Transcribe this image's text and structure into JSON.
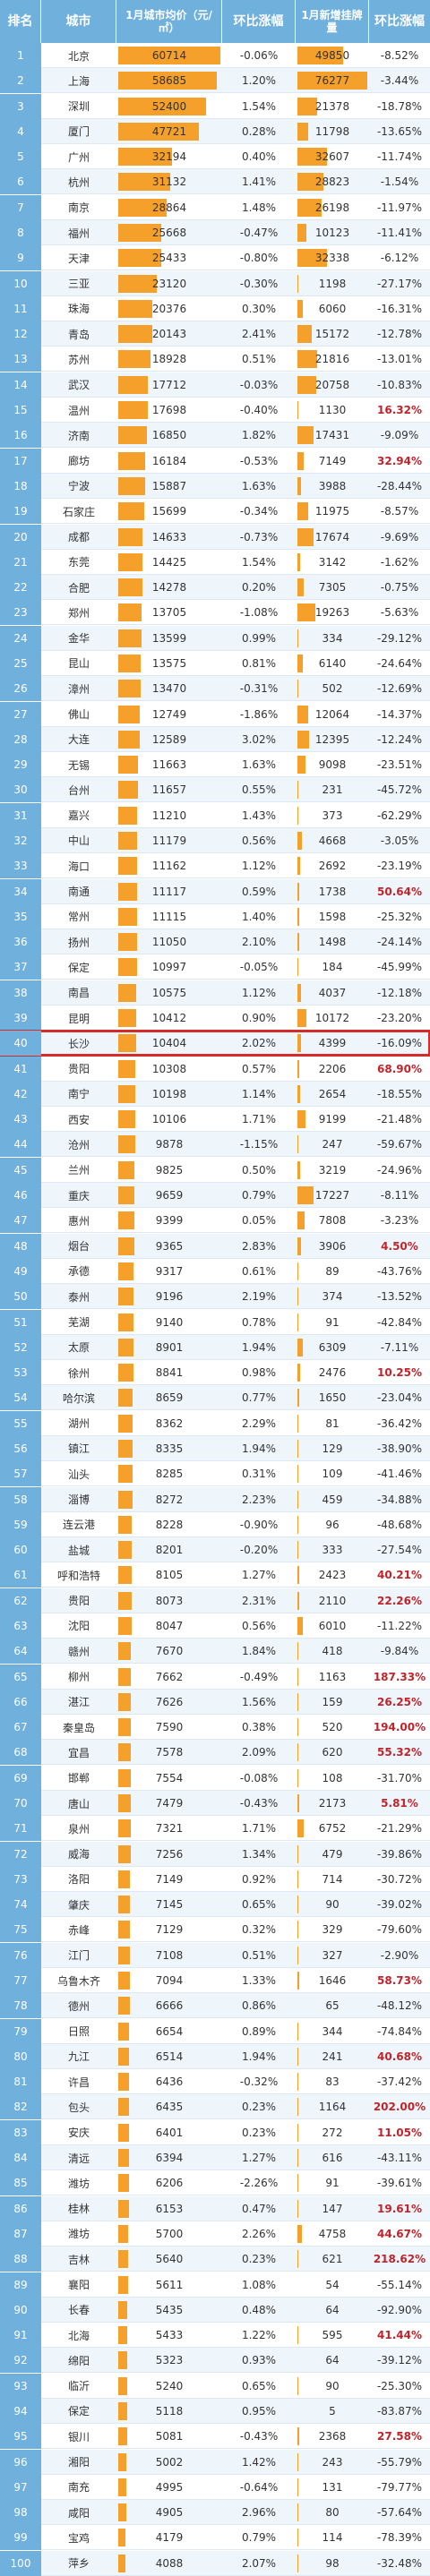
{
  "colors": {
    "header_bg": "#6fb0dd",
    "bar": "#f5a02a",
    "highlight_border": "#d62b2b",
    "positive_text": "#c0242b"
  },
  "header": {
    "rank": "排名",
    "city": "城市",
    "price": "1月城市均价（元/㎡）",
    "price_change": "环比涨幅",
    "listings": "1月新增挂牌量",
    "listing_change": "环比涨幅"
  },
  "highlight_rank": 40,
  "chart_data": {
    "type": "table",
    "columns": [
      "排名",
      "城市",
      "1月城市均价（元/㎡）",
      "环比涨幅",
      "1月新增挂牌量",
      "环比涨幅"
    ],
    "rows": [
      {
        "rank": "1",
        "city": "北京",
        "price": 60714,
        "price_change": "-0.06%",
        "listings": 49850,
        "listing_change": "-8.52%"
      },
      {
        "rank": "2",
        "city": "上海",
        "price": 58685,
        "price_change": "1.20%",
        "listings": 76277,
        "listing_change": "-3.44%"
      },
      {
        "rank": "3",
        "city": "深圳",
        "price": 52400,
        "price_change": "1.54%",
        "listings": 21378,
        "listing_change": "-18.78%"
      },
      {
        "rank": "4",
        "city": "厦门",
        "price": 47721,
        "price_change": "0.28%",
        "listings": 11798,
        "listing_change": "-13.65%"
      },
      {
        "rank": "5",
        "city": "广州",
        "price": 32194,
        "price_change": "0.40%",
        "listings": 32607,
        "listing_change": "-11.74%"
      },
      {
        "rank": "6",
        "city": "杭州",
        "price": 31132,
        "price_change": "1.41%",
        "listings": 28823,
        "listing_change": "-1.54%"
      },
      {
        "rank": "7",
        "city": "南京",
        "price": 28864,
        "price_change": "1.48%",
        "listings": 26198,
        "listing_change": "-11.97%"
      },
      {
        "rank": "8",
        "city": "福州",
        "price": 25668,
        "price_change": "-0.47%",
        "listings": 10123,
        "listing_change": "-11.41%"
      },
      {
        "rank": "9",
        "city": "天津",
        "price": 25433,
        "price_change": "-0.80%",
        "listings": 32338,
        "listing_change": "-6.12%"
      },
      {
        "rank": "10",
        "city": "三亚",
        "price": 23120,
        "price_change": "-0.30%",
        "listings": 1198,
        "listing_change": "-27.17%"
      },
      {
        "rank": "11",
        "city": "珠海",
        "price": 20376,
        "price_change": "0.30%",
        "listings": 6060,
        "listing_change": "-16.31%"
      },
      {
        "rank": "12",
        "city": "青岛",
        "price": 20143,
        "price_change": "2.41%",
        "listings": 15172,
        "listing_change": "-12.78%"
      },
      {
        "rank": "13",
        "city": "苏州",
        "price": 18928,
        "price_change": "0.51%",
        "listings": 21816,
        "listing_change": "-13.01%"
      },
      {
        "rank": "14",
        "city": "武汉",
        "price": 17712,
        "price_change": "-0.03%",
        "listings": 20758,
        "listing_change": "-10.83%"
      },
      {
        "rank": "15",
        "city": "温州",
        "price": 17698,
        "price_change": "-0.40%",
        "listings": 1130,
        "listing_change": "16.32%"
      },
      {
        "rank": "16",
        "city": "济南",
        "price": 16850,
        "price_change": "1.82%",
        "listings": 17431,
        "listing_change": "-9.09%"
      },
      {
        "rank": "17",
        "city": "廊坊",
        "price": 16184,
        "price_change": "-0.53%",
        "listings": 7149,
        "listing_change": "32.94%"
      },
      {
        "rank": "18",
        "city": "宁波",
        "price": 15887,
        "price_change": "1.63%",
        "listings": 3988,
        "listing_change": "-28.44%"
      },
      {
        "rank": "19",
        "city": "石家庄",
        "price": 15699,
        "price_change": "-0.34%",
        "listings": 11975,
        "listing_change": "-8.57%"
      },
      {
        "rank": "20",
        "city": "成都",
        "price": 14633,
        "price_change": "-0.73%",
        "listings": 17674,
        "listing_change": "-9.69%"
      },
      {
        "rank": "21",
        "city": "东莞",
        "price": 14425,
        "price_change": "1.54%",
        "listings": 3142,
        "listing_change": "-1.62%"
      },
      {
        "rank": "22",
        "city": "合肥",
        "price": 14278,
        "price_change": "0.20%",
        "listings": 7305,
        "listing_change": "-0.75%"
      },
      {
        "rank": "23",
        "city": "郑州",
        "price": 13705,
        "price_change": "-1.08%",
        "listings": 19263,
        "listing_change": "-5.63%"
      },
      {
        "rank": "24",
        "city": "金华",
        "price": 13599,
        "price_change": "0.99%",
        "listings": 334,
        "listing_change": "-29.12%"
      },
      {
        "rank": "25",
        "city": "昆山",
        "price": 13575,
        "price_change": "0.81%",
        "listings": 6140,
        "listing_change": "-24.64%"
      },
      {
        "rank": "26",
        "city": "漳州",
        "price": 13470,
        "price_change": "-0.31%",
        "listings": 502,
        "listing_change": "-12.69%"
      },
      {
        "rank": "27",
        "city": "佛山",
        "price": 12749,
        "price_change": "-1.86%",
        "listings": 12064,
        "listing_change": "-14.37%"
      },
      {
        "rank": "28",
        "city": "大连",
        "price": 12589,
        "price_change": "3.02%",
        "listings": 12395,
        "listing_change": "-12.24%"
      },
      {
        "rank": "29",
        "city": "无锡",
        "price": 11663,
        "price_change": "1.63%",
        "listings": 9098,
        "listing_change": "-23.51%"
      },
      {
        "rank": "30",
        "city": "台州",
        "price": 11657,
        "price_change": "0.55%",
        "listings": 231,
        "listing_change": "-45.72%"
      },
      {
        "rank": "31",
        "city": "嘉兴",
        "price": 11210,
        "price_change": "1.43%",
        "listings": 373,
        "listing_change": "-62.29%"
      },
      {
        "rank": "32",
        "city": "中山",
        "price": 11179,
        "price_change": "0.56%",
        "listings": 4668,
        "listing_change": "-3.05%"
      },
      {
        "rank": "33",
        "city": "海口",
        "price": 11162,
        "price_change": "1.12%",
        "listings": 2692,
        "listing_change": "-23.19%"
      },
      {
        "rank": "34",
        "city": "南通",
        "price": 11117,
        "price_change": "0.59%",
        "listings": 1738,
        "listing_change": "50.64%"
      },
      {
        "rank": "35",
        "city": "常州",
        "price": 11115,
        "price_change": "1.40%",
        "listings": 1598,
        "listing_change": "-25.32%"
      },
      {
        "rank": "36",
        "city": "扬州",
        "price": 11050,
        "price_change": "2.10%",
        "listings": 1498,
        "listing_change": "-24.14%"
      },
      {
        "rank": "37",
        "city": "保定",
        "price": 10997,
        "price_change": "-0.05%",
        "listings": 184,
        "listing_change": "-45.99%"
      },
      {
        "rank": "38",
        "city": "南昌",
        "price": 10575,
        "price_change": "1.12%",
        "listings": 4037,
        "listing_change": "-12.18%"
      },
      {
        "rank": "39",
        "city": "昆明",
        "price": 10412,
        "price_change": "0.90%",
        "listings": 10172,
        "listing_change": "-23.20%"
      },
      {
        "rank": "40",
        "city": "长沙",
        "price": 10404,
        "price_change": "2.02%",
        "listings": 4399,
        "listing_change": "-16.09%"
      },
      {
        "rank": "41",
        "city": "贵阳",
        "price": 10308,
        "price_change": "0.57%",
        "listings": 2206,
        "listing_change": "68.90%"
      },
      {
        "rank": "42",
        "city": "南宁",
        "price": 10198,
        "price_change": "1.14%",
        "listings": 2654,
        "listing_change": "-18.55%"
      },
      {
        "rank": "43",
        "city": "西安",
        "price": 10106,
        "price_change": "1.71%",
        "listings": 9199,
        "listing_change": "-21.48%"
      },
      {
        "rank": "44",
        "city": "沧州",
        "price": 9878,
        "price_change": "-1.15%",
        "listings": 247,
        "listing_change": "-59.67%"
      },
      {
        "rank": "45",
        "city": "兰州",
        "price": 9825,
        "price_change": "0.50%",
        "listings": 3219,
        "listing_change": "-24.96%"
      },
      {
        "rank": "46",
        "city": "重庆",
        "price": 9659,
        "price_change": "0.79%",
        "listings": 17227,
        "listing_change": "-8.11%"
      },
      {
        "rank": "47",
        "city": "惠州",
        "price": 9399,
        "price_change": "0.05%",
        "listings": 7808,
        "listing_change": "-3.23%"
      },
      {
        "rank": "48",
        "city": "烟台",
        "price": 9365,
        "price_change": "2.83%",
        "listings": 3906,
        "listing_change": "4.50%"
      },
      {
        "rank": "49",
        "city": "承德",
        "price": 9317,
        "price_change": "0.61%",
        "listings": 89,
        "listing_change": "-43.76%"
      },
      {
        "rank": "50",
        "city": "泰州",
        "price": 9196,
        "price_change": "2.19%",
        "listings": 374,
        "listing_change": "-13.52%"
      },
      {
        "rank": "51",
        "city": "芜湖",
        "price": 9140,
        "price_change": "0.78%",
        "listings": 91,
        "listing_change": "-42.84%"
      },
      {
        "rank": "52",
        "city": "太原",
        "price": 8901,
        "price_change": "1.94%",
        "listings": 6309,
        "listing_change": "-7.11%"
      },
      {
        "rank": "53",
        "city": "徐州",
        "price": 8841,
        "price_change": "0.98%",
        "listings": 2476,
        "listing_change": "10.25%"
      },
      {
        "rank": "54",
        "city": "哈尔滨",
        "price": 8659,
        "price_change": "0.77%",
        "listings": 1650,
        "listing_change": "-23.04%"
      },
      {
        "rank": "55",
        "city": "湖州",
        "price": 8362,
        "price_change": "2.29%",
        "listings": 81,
        "listing_change": "-36.42%"
      },
      {
        "rank": "56",
        "city": "镇江",
        "price": 8335,
        "listings": 129,
        "price_change": "1.94%",
        "listing_change": "-38.90%"
      },
      {
        "rank": "57",
        "city": "汕头",
        "price": 8285,
        "price_change": "0.31%",
        "listings": 109,
        "listing_change": "-41.46%"
      },
      {
        "rank": "58",
        "city": "淄博",
        "price": 8272,
        "price_change": "2.23%",
        "listings": 459,
        "listing_change": "-34.88%"
      },
      {
        "rank": "59",
        "city": "连云港",
        "price": 8228,
        "price_change": "-0.90%",
        "listings": 96,
        "listing_change": "-48.68%"
      },
      {
        "rank": "60",
        "city": "盐城",
        "price": 8201,
        "price_change": "-0.20%",
        "listings": 333,
        "listing_change": "-27.54%"
      },
      {
        "rank": "61",
        "city": "呼和浩特",
        "price": 8105,
        "price_change": "1.27%",
        "listings": 2423,
        "listing_change": "40.21%"
      },
      {
        "rank": "62",
        "city": "贵阳",
        "price": 8073,
        "price_change": "2.31%",
        "listings": 2110,
        "listing_change": "22.26%"
      },
      {
        "rank": "63",
        "city": "沈阳",
        "price": 8047,
        "price_change": "0.56%",
        "listings": 6010,
        "listing_change": "-11.22%"
      },
      {
        "rank": "64",
        "city": "赣州",
        "price": 7670,
        "price_change": "1.84%",
        "listings": 418,
        "listing_change": "-9.84%"
      },
      {
        "rank": "65",
        "city": "柳州",
        "price": 7662,
        "price_change": "-0.49%",
        "listings": 1163,
        "listing_change": "187.33%"
      },
      {
        "rank": "66",
        "city": "湛江",
        "price": 7626,
        "price_change": "1.56%",
        "listings": 159,
        "listing_change": "26.25%"
      },
      {
        "rank": "67",
        "city": "秦皇岛",
        "price": 7590,
        "price_change": "0.38%",
        "listings": 520,
        "listing_change": "194.00%"
      },
      {
        "rank": "68",
        "city": "宜昌",
        "price": 7578,
        "price_change": "2.09%",
        "listings": 620,
        "listing_change": "55.32%"
      },
      {
        "rank": "69",
        "city": "邯郸",
        "price": 7554,
        "price_change": "-0.08%",
        "listings": 108,
        "listing_change": "-31.70%"
      },
      {
        "rank": "70",
        "city": "唐山",
        "price": 7479,
        "price_change": "-0.43%",
        "listings": 2173,
        "listing_change": "5.81%"
      },
      {
        "rank": "71",
        "city": "泉州",
        "price": 7321,
        "price_change": "1.71%",
        "listings": 6752,
        "listing_change": "-21.29%"
      },
      {
        "rank": "72",
        "city": "威海",
        "price": 7256,
        "price_change": "1.34%",
        "listings": 479,
        "listing_change": "-39.86%"
      },
      {
        "rank": "73",
        "city": "洛阳",
        "price": 7149,
        "price_change": "0.92%",
        "listings": 714,
        "listing_change": "-30.72%"
      },
      {
        "rank": "74",
        "city": "肇庆",
        "price": 7145,
        "price_change": "0.65%",
        "listings": 90,
        "listing_change": "-39.02%"
      },
      {
        "rank": "75",
        "city": "赤峰",
        "price": 7129,
        "price_change": "0.32%",
        "listings": 329,
        "listing_change": "-79.60%"
      },
      {
        "rank": "76",
        "city": "江门",
        "price": 7108,
        "price_change": "0.51%",
        "listings": 327,
        "listing_change": "-2.90%"
      },
      {
        "rank": "77",
        "city": "乌鲁木齐",
        "price": 7094,
        "price_change": "1.33%",
        "listings": 1646,
        "listing_change": "58.73%"
      },
      {
        "rank": "78",
        "city": "德州",
        "price": 6666,
        "price_change": "0.86%",
        "listings": 65,
        "listing_change": "-48.12%"
      },
      {
        "rank": "79",
        "city": "日照",
        "price": 6654,
        "price_change": "0.89%",
        "listings": 344,
        "listing_change": "-74.84%"
      },
      {
        "rank": "80",
        "city": "九江",
        "price": 6514,
        "price_change": "1.94%",
        "listings": 241,
        "listing_change": "40.68%"
      },
      {
        "rank": "81",
        "city": "许昌",
        "price": 6436,
        "price_change": "-0.32%",
        "listings": 83,
        "listing_change": "-37.42%"
      },
      {
        "rank": "82",
        "city": "包头",
        "price": 6435,
        "price_change": "0.23%",
        "listings": 1164,
        "listing_change": "202.00%"
      },
      {
        "rank": "83",
        "city": "安庆",
        "price": 6401,
        "price_change": "0.23%",
        "listings": 272,
        "listing_change": "11.05%"
      },
      {
        "rank": "84",
        "city": "清远",
        "price": 6394,
        "price_change": "1.27%",
        "listings": 616,
        "listing_change": "-43.11%"
      },
      {
        "rank": "85",
        "city": "潍坊",
        "price": 6206,
        "price_change": "-2.26%",
        "listings": 91,
        "listing_change": "-39.61%"
      },
      {
        "rank": "86",
        "city": "桂林",
        "price": 6153,
        "price_change": "0.47%",
        "listings": 147,
        "listing_change": "19.61%"
      },
      {
        "rank": "87",
        "city": "潍坊",
        "price": 5700,
        "price_change": "2.26%",
        "listings": 4758,
        "listing_change": "44.67%"
      },
      {
        "rank": "88",
        "city": "吉林",
        "price": 5640,
        "price_change": "0.23%",
        "listings": 621,
        "listing_change": "218.62%"
      },
      {
        "rank": "89",
        "city": "襄阳",
        "price": 5611,
        "price_change": "1.08%",
        "listings": 54,
        "listing_change": "-55.14%"
      },
      {
        "rank": "90",
        "city": "长春",
        "price": 5435,
        "price_change": "0.48%",
        "listings": 64,
        "listing_change": "-92.90%"
      },
      {
        "rank": "91",
        "city": "北海",
        "price": 5433,
        "price_change": "1.22%",
        "listings": 595,
        "listing_change": "41.44%"
      },
      {
        "rank": "92",
        "city": "绵阳",
        "price": 5323,
        "price_change": "0.93%",
        "listings": 64,
        "listing_change": "-39.12%"
      },
      {
        "rank": "93",
        "city": "临沂",
        "price": 5240,
        "price_change": "0.65%",
        "listings": 90,
        "listing_change": "-25.30%"
      },
      {
        "rank": "94",
        "city": "保定",
        "price": 5118,
        "price_change": "0.95%",
        "listings": 5,
        "listing_change": "-83.87%"
      },
      {
        "rank": "95",
        "city": "银川",
        "price": 5081,
        "price_change": "-0.43%",
        "listings": 2368,
        "listing_change": "27.58%"
      },
      {
        "rank": "96",
        "city": "湘阳",
        "price": 5002,
        "price_change": "1.42%",
        "listings": 243,
        "listing_change": "-55.79%"
      },
      {
        "rank": "97",
        "city": "南充",
        "price": 4995,
        "price_change": "-0.64%",
        "listings": 131,
        "listing_change": "-79.77%"
      },
      {
        "rank": "98",
        "city": "咸阳",
        "price": 4905,
        "price_change": "2.96%",
        "listings": 80,
        "listing_change": "-57.64%"
      },
      {
        "rank": "99",
        "city": "宝鸡",
        "price": 4179,
        "price_change": "0.79%",
        "listings": 114,
        "listing_change": "-78.39%"
      },
      {
        "rank": "100",
        "city": "萍乡",
        "price": 4088,
        "price_change": "2.07%",
        "listings": 98,
        "listing_change": "-32.48%"
      }
    ]
  }
}
